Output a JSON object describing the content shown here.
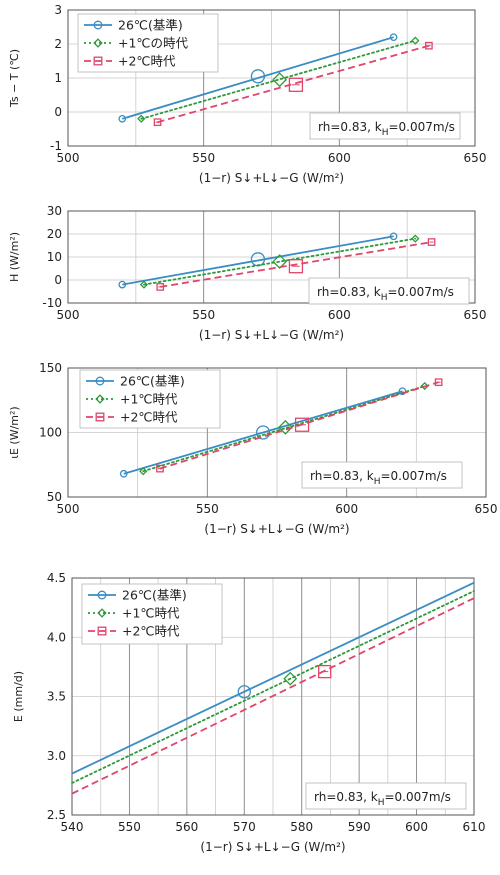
{
  "colors": {
    "base": "#3a8cc4",
    "plus1": "#2e9a3a",
    "plus2": "#e0456a",
    "grid": "#c9c9c9",
    "frame": "#555555"
  },
  "chart_data": [
    {
      "type": "line",
      "xlabel": "(1−r) S↓+L↓−G (W/m²)",
      "ylabel": "Ts − T (℃)",
      "xlim": [
        500,
        650
      ],
      "ylim": [
        -1,
        3
      ],
      "xticks": [
        500,
        550,
        600,
        650
      ],
      "yticks": [
        -1,
        0,
        1,
        2,
        3
      ],
      "xgrid": [
        525,
        550,
        575,
        600,
        625
      ],
      "legend": "top-left",
      "annotation": {
        "main": "rh=0.83,  k",
        "sub": "H",
        "tail": "=0.007m/s"
      },
      "series": [
        {
          "name": "26℃(基準)",
          "style": "solid",
          "marker": "circle",
          "x": [
            520,
            620
          ],
          "y": [
            -0.2,
            2.2
          ],
          "mid": [
            570,
            1.05
          ]
        },
        {
          "name": "+1℃の時代",
          "style": "dotted",
          "marker": "diamond",
          "x": [
            527,
            628
          ],
          "y": [
            -0.2,
            2.1
          ],
          "mid": [
            578,
            0.95
          ]
        },
        {
          "name": "+2℃時代",
          "style": "dashed",
          "marker": "square",
          "x": [
            533,
            633
          ],
          "y": [
            -0.3,
            1.95
          ],
          "mid": [
            584,
            0.8
          ]
        }
      ]
    },
    {
      "type": "line",
      "xlabel": "(1−r) S↓+L↓−G (W/m²)",
      "ylabel": "H (W/m²)",
      "xlim": [
        500,
        650
      ],
      "ylim": [
        -10,
        30
      ],
      "xticks": [
        500,
        550,
        600,
        650
      ],
      "yticks": [
        -10,
        0,
        10,
        20,
        30
      ],
      "xgrid": [
        525,
        550,
        575,
        600,
        625
      ],
      "legend": "none",
      "annotation": {
        "main": "rh=0.83,  k",
        "sub": "H",
        "tail": "=0.007m/s"
      },
      "series": [
        {
          "name": "",
          "style": "solid",
          "marker": "circle",
          "x": [
            520,
            620
          ],
          "y": [
            -2,
            19
          ],
          "mid": [
            570,
            9
          ]
        },
        {
          "name": "",
          "style": "dotted",
          "marker": "diamond",
          "x": [
            528,
            628
          ],
          "y": [
            -2,
            18
          ],
          "mid": [
            578,
            8
          ]
        },
        {
          "name": "",
          "style": "dashed",
          "marker": "square",
          "x": [
            534,
            634
          ],
          "y": [
            -3,
            16.5
          ],
          "mid": [
            584,
            6
          ]
        }
      ]
    },
    {
      "type": "line",
      "xlabel": "(1−r) S↓+L↓−G (W/m²)",
      "ylabel": "ιE (W/m²)",
      "xlim": [
        500,
        650
      ],
      "ylim": [
        50,
        150
      ],
      "xticks": [
        500,
        550,
        600,
        650
      ],
      "yticks": [
        50,
        100,
        150
      ],
      "xgrid": [
        525,
        550,
        575,
        600,
        625
      ],
      "legend": "top-left",
      "annotation": {
        "main": "rh=0.83,  k",
        "sub": "H",
        "tail": "=0.007m/s"
      },
      "series": [
        {
          "name": "26℃(基準)",
          "style": "solid",
          "marker": "circle",
          "x": [
            520,
            620
          ],
          "y": [
            68,
            132
          ],
          "mid": [
            570,
            100
          ]
        },
        {
          "name": "+1℃時代",
          "style": "dotted",
          "marker": "diamond",
          "x": [
            527,
            628
          ],
          "y": [
            70,
            136
          ],
          "mid": [
            578,
            104
          ]
        },
        {
          "name": "+2℃時代",
          "style": "dashed",
          "marker": "square",
          "x": [
            533,
            633
          ],
          "y": [
            72,
            139
          ],
          "mid": [
            584,
            106
          ]
        }
      ]
    },
    {
      "type": "line",
      "xlabel": "(1−r) S↓+L↓−G (W/m²)",
      "ylabel": "E (mm/d)",
      "xlim": [
        540,
        610
      ],
      "ylim": [
        2.5,
        4.5
      ],
      "xticks": [
        540,
        550,
        560,
        570,
        580,
        590,
        600,
        610
      ],
      "yticks": [
        2.5,
        3.0,
        3.5,
        4.0,
        4.5
      ],
      "ytick_labels": [
        "2.5",
        "3.0",
        "3.5",
        "4.0",
        "4.5"
      ],
      "xgrid": [
        545,
        550,
        555,
        560,
        565,
        570,
        575,
        580,
        585,
        590,
        595,
        600,
        605
      ],
      "legend": "top-left",
      "annotation": {
        "main": "rh=0.83,  k",
        "sub": "H",
        "tail": "=0.007m/s"
      },
      "series": [
        {
          "name": "26℃(基準)",
          "style": "solid",
          "marker": "circle",
          "x": [
            540,
            610
          ],
          "y": [
            2.85,
            4.46
          ],
          "mid": [
            570,
            3.54
          ]
        },
        {
          "name": "+1℃時代",
          "style": "dotted",
          "marker": "diamond",
          "x": [
            540,
            610
          ],
          "y": [
            2.77,
            4.39
          ],
          "mid": [
            578,
            3.65
          ]
        },
        {
          "name": "+2℃時代",
          "style": "dashed",
          "marker": "square",
          "x": [
            540,
            610
          ],
          "y": [
            2.68,
            4.33
          ],
          "mid": [
            584,
            3.71
          ]
        }
      ]
    }
  ]
}
